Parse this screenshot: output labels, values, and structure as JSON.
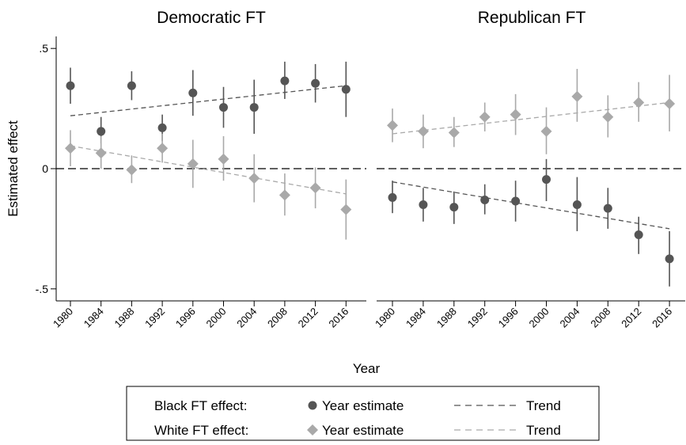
{
  "chart_data": {
    "type": "scatter",
    "xlabel": "Year",
    "ylabel": "Estimated effect",
    "ylim": [
      -0.55,
      0.55
    ],
    "yticks": [
      {
        "value": 0.5,
        "label": ".5"
      },
      {
        "value": 0,
        "label": "0"
      },
      {
        "value": -0.5,
        "label": "-.5"
      }
    ],
    "xticks": [
      "1980",
      "1984",
      "1988",
      "1992",
      "1996",
      "2000",
      "2004",
      "2008",
      "2012",
      "2016"
    ],
    "colors": {
      "black": "#555555",
      "white": "#a9a9a9",
      "zero_line": "#000000"
    },
    "panels": [
      {
        "title": "Democratic FT",
        "series": [
          {
            "key": "black",
            "marker": "circle",
            "points": [
              {
                "x": 1980,
                "y": 0.345,
                "lo": 0.27,
                "hi": 0.42
              },
              {
                "x": 1984,
                "y": 0.155,
                "lo": 0.105,
                "hi": 0.215
              },
              {
                "x": 1988,
                "y": 0.345,
                "lo": 0.285,
                "hi": 0.405
              },
              {
                "x": 1992,
                "y": 0.17,
                "lo": 0.115,
                "hi": 0.225
              },
              {
                "x": 1996,
                "y": 0.315,
                "lo": 0.22,
                "hi": 0.41
              },
              {
                "x": 2000,
                "y": 0.255,
                "lo": 0.17,
                "hi": 0.34
              },
              {
                "x": 2004,
                "y": 0.255,
                "lo": 0.145,
                "hi": 0.37
              },
              {
                "x": 2008,
                "y": 0.365,
                "lo": 0.29,
                "hi": 0.445
              },
              {
                "x": 2012,
                "y": 0.355,
                "lo": 0.275,
                "hi": 0.435
              },
              {
                "x": 2016,
                "y": 0.33,
                "lo": 0.215,
                "hi": 0.445
              }
            ],
            "trend": [
              {
                "x": 1980,
                "y": 0.22
              },
              {
                "x": 2016,
                "y": 0.345
              }
            ]
          },
          {
            "key": "white",
            "marker": "diamond",
            "points": [
              {
                "x": 1980,
                "y": 0.085,
                "lo": 0.01,
                "hi": 0.16
              },
              {
                "x": 1984,
                "y": 0.065,
                "lo": 0.0,
                "hi": 0.135
              },
              {
                "x": 1988,
                "y": -0.005,
                "lo": -0.06,
                "hi": 0.055
              },
              {
                "x": 1992,
                "y": 0.085,
                "lo": 0.025,
                "hi": 0.145
              },
              {
                "x": 1996,
                "y": 0.02,
                "lo": -0.08,
                "hi": 0.12
              },
              {
                "x": 2000,
                "y": 0.04,
                "lo": -0.05,
                "hi": 0.135
              },
              {
                "x": 2004,
                "y": -0.04,
                "lo": -0.14,
                "hi": 0.06
              },
              {
                "x": 2008,
                "y": -0.11,
                "lo": -0.195,
                "hi": -0.02
              },
              {
                "x": 2012,
                "y": -0.08,
                "lo": -0.165,
                "hi": 0.005
              },
              {
                "x": 2016,
                "y": -0.17,
                "lo": -0.295,
                "hi": -0.045
              }
            ],
            "trend": [
              {
                "x": 1980,
                "y": 0.095
              },
              {
                "x": 2016,
                "y": -0.105
              }
            ]
          }
        ]
      },
      {
        "title": "Republican FT",
        "series": [
          {
            "key": "black",
            "marker": "circle",
            "points": [
              {
                "x": 1980,
                "y": -0.12,
                "lo": -0.185,
                "hi": -0.05
              },
              {
                "x": 1984,
                "y": -0.15,
                "lo": -0.22,
                "hi": -0.08
              },
              {
                "x": 1988,
                "y": -0.16,
                "lo": -0.23,
                "hi": -0.095
              },
              {
                "x": 1992,
                "y": -0.13,
                "lo": -0.19,
                "hi": -0.065
              },
              {
                "x": 1996,
                "y": -0.135,
                "lo": -0.22,
                "hi": -0.05
              },
              {
                "x": 2000,
                "y": -0.045,
                "lo": -0.135,
                "hi": 0.04
              },
              {
                "x": 2004,
                "y": -0.15,
                "lo": -0.26,
                "hi": -0.035
              },
              {
                "x": 2008,
                "y": -0.165,
                "lo": -0.25,
                "hi": -0.08
              },
              {
                "x": 2012,
                "y": -0.275,
                "lo": -0.355,
                "hi": -0.2
              },
              {
                "x": 2016,
                "y": -0.375,
                "lo": -0.49,
                "hi": -0.26
              }
            ],
            "trend": [
              {
                "x": 1980,
                "y": -0.055
              },
              {
                "x": 2016,
                "y": -0.25
              }
            ]
          },
          {
            "key": "white",
            "marker": "diamond",
            "points": [
              {
                "x": 1980,
                "y": 0.18,
                "lo": 0.11,
                "hi": 0.25
              },
              {
                "x": 1984,
                "y": 0.155,
                "lo": 0.085,
                "hi": 0.225
              },
              {
                "x": 1988,
                "y": 0.15,
                "lo": 0.09,
                "hi": 0.215
              },
              {
                "x": 1992,
                "y": 0.215,
                "lo": 0.155,
                "hi": 0.275
              },
              {
                "x": 1996,
                "y": 0.225,
                "lo": 0.14,
                "hi": 0.31
              },
              {
                "x": 2000,
                "y": 0.155,
                "lo": 0.06,
                "hi": 0.255
              },
              {
                "x": 2004,
                "y": 0.3,
                "lo": 0.195,
                "hi": 0.415
              },
              {
                "x": 2008,
                "y": 0.215,
                "lo": 0.13,
                "hi": 0.305
              },
              {
                "x": 2012,
                "y": 0.275,
                "lo": 0.195,
                "hi": 0.36
              },
              {
                "x": 2016,
                "y": 0.27,
                "lo": 0.155,
                "hi": 0.39
              }
            ],
            "trend": [
              {
                "x": 1980,
                "y": 0.145
              },
              {
                "x": 2016,
                "y": 0.275
              }
            ]
          }
        ]
      }
    ],
    "legend": {
      "placement": "bottom",
      "rows": [
        {
          "key": "black",
          "group_label": "Black FT effect:",
          "estimate_label": "Year estimate",
          "trend_label": "Trend"
        },
        {
          "key": "white",
          "group_label": "White FT effect:",
          "estimate_label": "Year estimate",
          "trend_label": "Trend"
        }
      ]
    }
  }
}
